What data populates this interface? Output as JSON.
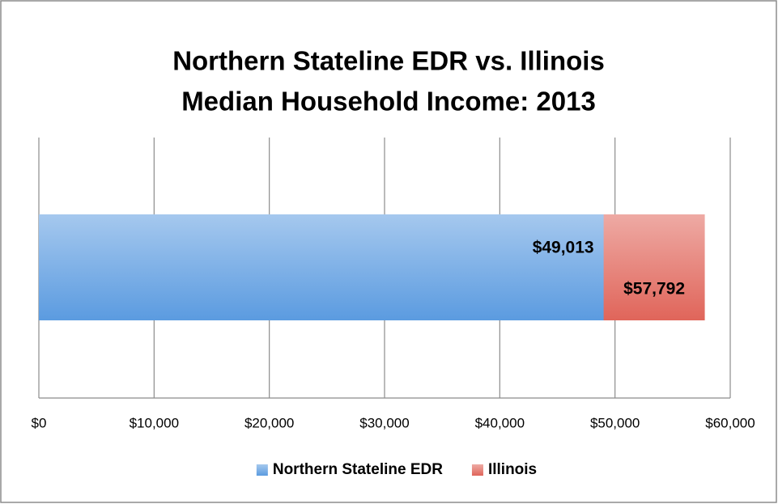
{
  "chart_data": {
    "type": "bar",
    "orientation": "horizontal",
    "title": [
      "Northern Stateline EDR vs. Illinois",
      "Median Household Income: 2013"
    ],
    "categories": [
      null
    ],
    "series": [
      {
        "name": "Northern Stateline EDR",
        "color": "#5b9be0",
        "values": [
          49013
        ],
        "value_labels": [
          "$49,013"
        ]
      },
      {
        "name": "Illinois",
        "color": "#e0655a",
        "values": [
          57792
        ],
        "value_labels": [
          "$57,792"
        ]
      }
    ],
    "xlim": [
      0,
      60000
    ],
    "xticks": [
      {
        "value": 0,
        "label": "$0"
      },
      {
        "value": 10000,
        "label": "$10,000"
      },
      {
        "value": 20000,
        "label": "$20,000"
      },
      {
        "value": 30000,
        "label": "$30,000"
      },
      {
        "value": 40000,
        "label": "$40,000"
      },
      {
        "value": 50000,
        "label": "$50,000"
      },
      {
        "value": 60000,
        "label": "$60,000"
      }
    ],
    "grid": true,
    "legend": "bottom"
  }
}
